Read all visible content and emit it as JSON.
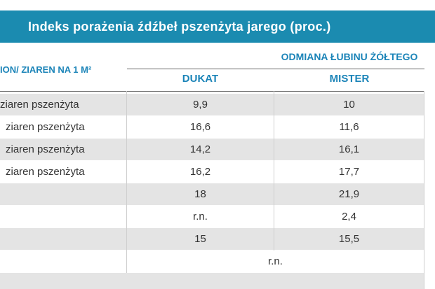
{
  "title": "Indeks porażenia źdźbeł pszenżyta jarego (proc.)",
  "header": {
    "first_col_label": "ION/ ZIAREN NA 1 M²",
    "group_label": "ODMIANA ŁUBINU ŻÓŁTEGO",
    "col_dukat": "DUKAT",
    "col_mister": "MISTER"
  },
  "rows": [
    {
      "label": "ziaren pszenżyta",
      "dukat": "9,9",
      "mister": "10"
    },
    {
      "label": "ziaren pszenżyta",
      "dukat": "16,6",
      "mister": "11,6"
    },
    {
      "label": "ziaren pszenżyta",
      "dukat": "14,2",
      "mister": "16,1"
    },
    {
      "label": "ziaren pszenżyta",
      "dukat": "16,2",
      "mister": "17,7"
    },
    {
      "label": "",
      "dukat": "18",
      "mister": "21,9"
    },
    {
      "label": "",
      "dukat": "r.n.",
      "mister": "2,4"
    },
    {
      "label": "",
      "dukat": "15",
      "mister": "15,5"
    },
    {
      "label": "",
      "merged": "r.n."
    }
  ]
}
